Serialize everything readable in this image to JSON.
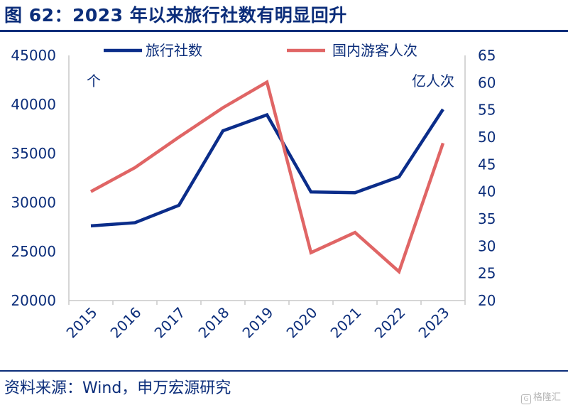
{
  "title": "图 62：2023 年以来旅行社数有明显回升",
  "source": "资料来源：Wind，申万宏源研究",
  "watermark": "格隆汇",
  "chart_data": {
    "type": "line",
    "categories": [
      "2015",
      "2016",
      "2017",
      "2018",
      "2019",
      "2020",
      "2021",
      "2022",
      "2023"
    ],
    "series": [
      {
        "name": "旅行社数",
        "axis": "left",
        "color": "#0b2d8a",
        "values": [
          27621,
          27939,
          29717,
          37309,
          38943,
          31074,
          31000,
          32614,
          39500
        ]
      },
      {
        "name": "国内游客人次",
        "axis": "right",
        "color": "#e06565",
        "values": [
          40.0,
          44.4,
          50.0,
          55.4,
          60.1,
          28.8,
          32.5,
          25.3,
          48.9
        ]
      }
    ],
    "y_left": {
      "label": "个",
      "min": 20000,
      "max": 45000,
      "ticks": [
        20000,
        25000,
        30000,
        35000,
        40000,
        45000
      ]
    },
    "y_right": {
      "label": "亿人次",
      "min": 20,
      "max": 65,
      "ticks": [
        20,
        25,
        30,
        35,
        40,
        45,
        50,
        55,
        60,
        65
      ]
    },
    "legend_position": "top",
    "grid": false
  }
}
